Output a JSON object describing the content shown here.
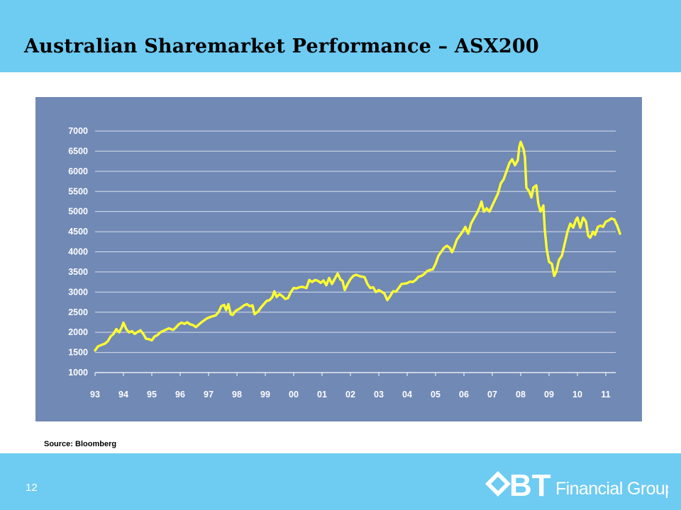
{
  "slide": {
    "title": "Australian Sharemarket Performance – ASX200",
    "source": "Source: Bloomberg",
    "page_number": "12",
    "logo": {
      "mark": "BT",
      "text": "Financial Group"
    }
  },
  "colors": {
    "band": "#6ecbf2",
    "chart_bg": "#7189b5",
    "line": "#ffff33",
    "gridline": "#d8dfeb"
  },
  "chart_data": {
    "type": "line",
    "title": "",
    "xlabel": "",
    "ylabel": "",
    "ylim": [
      1000,
      7000
    ],
    "yticks": [
      1000,
      1500,
      2000,
      2500,
      3000,
      3500,
      4000,
      4500,
      5000,
      5500,
      6000,
      6500,
      7000
    ],
    "xlim": [
      1993,
      2011.5
    ],
    "xticks": [
      {
        "x": 1993,
        "label": "93"
      },
      {
        "x": 1994,
        "label": "94"
      },
      {
        "x": 1995,
        "label": "95"
      },
      {
        "x": 1996,
        "label": "96"
      },
      {
        "x": 1997,
        "label": "97"
      },
      {
        "x": 1998,
        "label": "98"
      },
      {
        "x": 1999,
        "label": "99"
      },
      {
        "x": 2000,
        "label": "00"
      },
      {
        "x": 2001,
        "label": "01"
      },
      {
        "x": 2002,
        "label": "02"
      },
      {
        "x": 2003,
        "label": "03"
      },
      {
        "x": 2004,
        "label": "04"
      },
      {
        "x": 2005,
        "label": "05"
      },
      {
        "x": 2006,
        "label": "06"
      },
      {
        "x": 2007,
        "label": "07"
      },
      {
        "x": 2008,
        "label": "08"
      },
      {
        "x": 2009,
        "label": "09"
      },
      {
        "x": 2010,
        "label": "10"
      },
      {
        "x": 2011,
        "label": "11"
      }
    ],
    "grid": true,
    "series": [
      {
        "name": "",
        "points": [
          [
            1993.0,
            1550
          ],
          [
            1993.1,
            1650
          ],
          [
            1993.2,
            1680
          ],
          [
            1993.35,
            1720
          ],
          [
            1993.45,
            1780
          ],
          [
            1993.55,
            1900
          ],
          [
            1993.65,
            1960
          ],
          [
            1993.75,
            2080
          ],
          [
            1993.85,
            2000
          ],
          [
            1993.95,
            2140
          ],
          [
            1994.0,
            2240
          ],
          [
            1994.1,
            2080
          ],
          [
            1994.2,
            2000
          ],
          [
            1994.3,
            2030
          ],
          [
            1994.4,
            1960
          ],
          [
            1994.5,
            2010
          ],
          [
            1994.6,
            2050
          ],
          [
            1994.7,
            1960
          ],
          [
            1994.8,
            1840
          ],
          [
            1994.9,
            1830
          ],
          [
            1995.0,
            1800
          ],
          [
            1995.1,
            1900
          ],
          [
            1995.2,
            1930
          ],
          [
            1995.3,
            2000
          ],
          [
            1995.45,
            2050
          ],
          [
            1995.6,
            2100
          ],
          [
            1995.75,
            2060
          ],
          [
            1995.85,
            2120
          ],
          [
            1995.95,
            2200
          ],
          [
            1996.05,
            2240
          ],
          [
            1996.15,
            2210
          ],
          [
            1996.25,
            2250
          ],
          [
            1996.35,
            2200
          ],
          [
            1996.45,
            2180
          ],
          [
            1996.55,
            2130
          ],
          [
            1996.65,
            2190
          ],
          [
            1996.75,
            2250
          ],
          [
            1996.85,
            2300
          ],
          [
            1996.95,
            2350
          ],
          [
            1997.1,
            2390
          ],
          [
            1997.25,
            2420
          ],
          [
            1997.35,
            2500
          ],
          [
            1997.45,
            2650
          ],
          [
            1997.55,
            2680
          ],
          [
            1997.62,
            2550
          ],
          [
            1997.7,
            2700
          ],
          [
            1997.78,
            2450
          ],
          [
            1997.85,
            2430
          ],
          [
            1997.95,
            2530
          ],
          [
            1998.1,
            2590
          ],
          [
            1998.25,
            2670
          ],
          [
            1998.35,
            2700
          ],
          [
            1998.45,
            2650
          ],
          [
            1998.55,
            2670
          ],
          [
            1998.62,
            2450
          ],
          [
            1998.75,
            2520
          ],
          [
            1998.85,
            2620
          ],
          [
            1998.95,
            2700
          ],
          [
            1999.05,
            2780
          ],
          [
            1999.15,
            2800
          ],
          [
            1999.25,
            2880
          ],
          [
            1999.32,
            3020
          ],
          [
            1999.4,
            2880
          ],
          [
            1999.5,
            2950
          ],
          [
            1999.6,
            2900
          ],
          [
            1999.7,
            2830
          ],
          [
            1999.8,
            2850
          ],
          [
            1999.9,
            3000
          ],
          [
            2000.0,
            3100
          ],
          [
            2000.1,
            3090
          ],
          [
            2000.2,
            3120
          ],
          [
            2000.3,
            3130
          ],
          [
            2000.45,
            3100
          ],
          [
            2000.55,
            3300
          ],
          [
            2000.65,
            3250
          ],
          [
            2000.75,
            3300
          ],
          [
            2000.85,
            3280
          ],
          [
            2000.95,
            3230
          ],
          [
            2001.05,
            3290
          ],
          [
            2001.15,
            3170
          ],
          [
            2001.25,
            3350
          ],
          [
            2001.35,
            3200
          ],
          [
            2001.45,
            3330
          ],
          [
            2001.55,
            3460
          ],
          [
            2001.65,
            3310
          ],
          [
            2001.72,
            3280
          ],
          [
            2001.8,
            3050
          ],
          [
            2001.9,
            3200
          ],
          [
            2002.0,
            3320
          ],
          [
            2002.1,
            3400
          ],
          [
            2002.2,
            3430
          ],
          [
            2002.35,
            3390
          ],
          [
            2002.5,
            3370
          ],
          [
            2002.6,
            3200
          ],
          [
            2002.7,
            3100
          ],
          [
            2002.8,
            3120
          ],
          [
            2002.9,
            3000
          ],
          [
            2003.0,
            3050
          ],
          [
            2003.1,
            3010
          ],
          [
            2003.2,
            2960
          ],
          [
            2003.3,
            2800
          ],
          [
            2003.4,
            2900
          ],
          [
            2003.5,
            3020
          ],
          [
            2003.6,
            3010
          ],
          [
            2003.7,
            3100
          ],
          [
            2003.8,
            3200
          ],
          [
            2003.9,
            3210
          ],
          [
            2004.0,
            3220
          ],
          [
            2004.1,
            3260
          ],
          [
            2004.2,
            3250
          ],
          [
            2004.3,
            3300
          ],
          [
            2004.4,
            3380
          ],
          [
            2004.5,
            3400
          ],
          [
            2004.6,
            3450
          ],
          [
            2004.7,
            3520
          ],
          [
            2004.8,
            3550
          ],
          [
            2004.9,
            3560
          ],
          [
            2005.0,
            3700
          ],
          [
            2005.1,
            3900
          ],
          [
            2005.2,
            4000
          ],
          [
            2005.3,
            4100
          ],
          [
            2005.4,
            4150
          ],
          [
            2005.5,
            4100
          ],
          [
            2005.58,
            3990
          ],
          [
            2005.65,
            4100
          ],
          [
            2005.75,
            4300
          ],
          [
            2005.85,
            4400
          ],
          [
            2005.95,
            4500
          ],
          [
            2006.05,
            4620
          ],
          [
            2006.15,
            4450
          ],
          [
            2006.25,
            4700
          ],
          [
            2006.35,
            4830
          ],
          [
            2006.45,
            4950
          ],
          [
            2006.55,
            5100
          ],
          [
            2006.62,
            5250
          ],
          [
            2006.7,
            5000
          ],
          [
            2006.8,
            5080
          ],
          [
            2006.9,
            5000
          ],
          [
            2007.0,
            5150
          ],
          [
            2007.1,
            5300
          ],
          [
            2007.2,
            5450
          ],
          [
            2007.3,
            5700
          ],
          [
            2007.4,
            5800
          ],
          [
            2007.5,
            6000
          ],
          [
            2007.6,
            6200
          ],
          [
            2007.7,
            6300
          ],
          [
            2007.8,
            6150
          ],
          [
            2007.9,
            6280
          ],
          [
            2007.95,
            6600
          ],
          [
            2008.0,
            6730
          ],
          [
            2008.1,
            6550
          ],
          [
            2008.15,
            6350
          ],
          [
            2008.2,
            5600
          ],
          [
            2008.3,
            5500
          ],
          [
            2008.38,
            5350
          ],
          [
            2008.45,
            5600
          ],
          [
            2008.55,
            5650
          ],
          [
            2008.62,
            5200
          ],
          [
            2008.7,
            5000
          ],
          [
            2008.8,
            5150
          ],
          [
            2008.85,
            4550
          ],
          [
            2008.92,
            4050
          ],
          [
            2009.0,
            3750
          ],
          [
            2009.1,
            3700
          ],
          [
            2009.18,
            3400
          ],
          [
            2009.25,
            3500
          ],
          [
            2009.35,
            3800
          ],
          [
            2009.45,
            3900
          ],
          [
            2009.55,
            4200
          ],
          [
            2009.65,
            4500
          ],
          [
            2009.75,
            4700
          ],
          [
            2009.85,
            4600
          ],
          [
            2009.95,
            4800
          ],
          [
            2010.0,
            4850
          ],
          [
            2010.1,
            4600
          ],
          [
            2010.2,
            4850
          ],
          [
            2010.3,
            4750
          ],
          [
            2010.38,
            4400
          ],
          [
            2010.45,
            4350
          ],
          [
            2010.55,
            4500
          ],
          [
            2010.62,
            4420
          ],
          [
            2010.72,
            4620
          ],
          [
            2010.82,
            4650
          ],
          [
            2010.9,
            4620
          ],
          [
            2011.0,
            4750
          ],
          [
            2011.1,
            4780
          ],
          [
            2011.2,
            4830
          ],
          [
            2011.3,
            4800
          ],
          [
            2011.4,
            4650
          ],
          [
            2011.5,
            4450
          ]
        ]
      }
    ]
  }
}
